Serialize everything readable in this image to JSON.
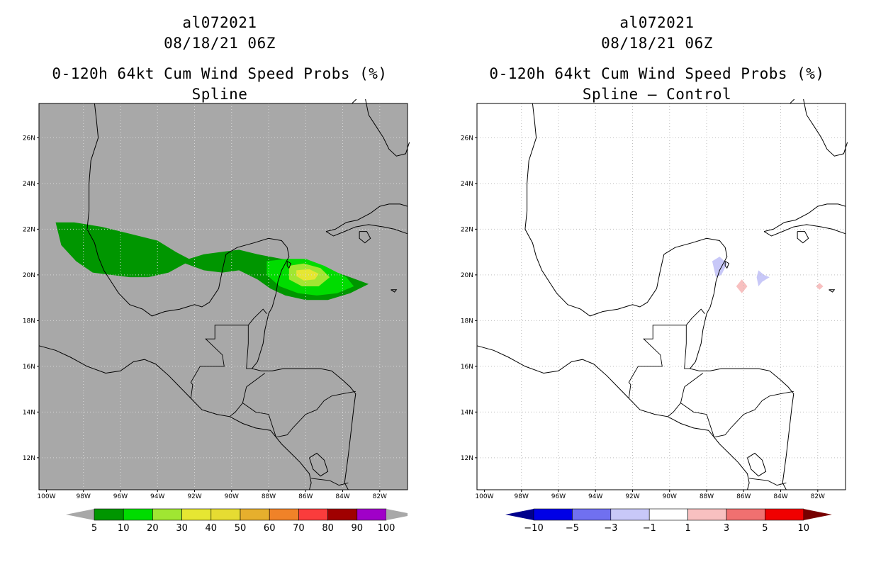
{
  "panels": [
    {
      "id": "left",
      "title_lines": [
        "al072021",
        "08/18/21 06Z",
        "0-120h 64kt Cum Wind Speed Probs (%)",
        "Spline"
      ],
      "background": "#a8a8a8",
      "colorbar": {
        "colors": [
          "#009600",
          "#00dc00",
          "#a0e632",
          "#e6e632",
          "#e6dc32",
          "#e6af2d",
          "#f08228",
          "#fa3c3c",
          "#a00000",
          "#a000c8"
        ],
        "end_colors": [
          "#a8a8a8",
          "#a8a8a8"
        ],
        "labels": [
          "5",
          "10",
          "20",
          "30",
          "40",
          "50",
          "60",
          "70",
          "80",
          "90",
          "100"
        ]
      }
    },
    {
      "id": "right",
      "title_lines": [
        "al072021",
        "08/18/21 06Z",
        "0-120h 64kt Cum Wind Speed Probs (%)",
        "Spline – Control"
      ],
      "background": "#ffffff",
      "colorbar": {
        "colors": [
          "#0000e6",
          "#7070f0",
          "#c8c8f8",
          "#ffffff",
          "#f8c0c0",
          "#f07070",
          "#f00000"
        ],
        "end_colors": [
          "#00008c",
          "#780000"
        ],
        "labels": [
          "−10",
          "−5",
          "−3",
          "−1",
          "1",
          "3",
          "5",
          "10"
        ]
      }
    }
  ],
  "axes": {
    "lat_labels": [
      "26N",
      "24N",
      "22N",
      "20N",
      "18N",
      "16N",
      "14N",
      "12N"
    ],
    "lon_labels": [
      "100W",
      "98W",
      "96W",
      "94W",
      "92W",
      "90W",
      "88W",
      "86W",
      "84W",
      "82W"
    ]
  },
  "icons": {
    "coastline": "coastline-line",
    "gridline": "dotted-gridline"
  }
}
